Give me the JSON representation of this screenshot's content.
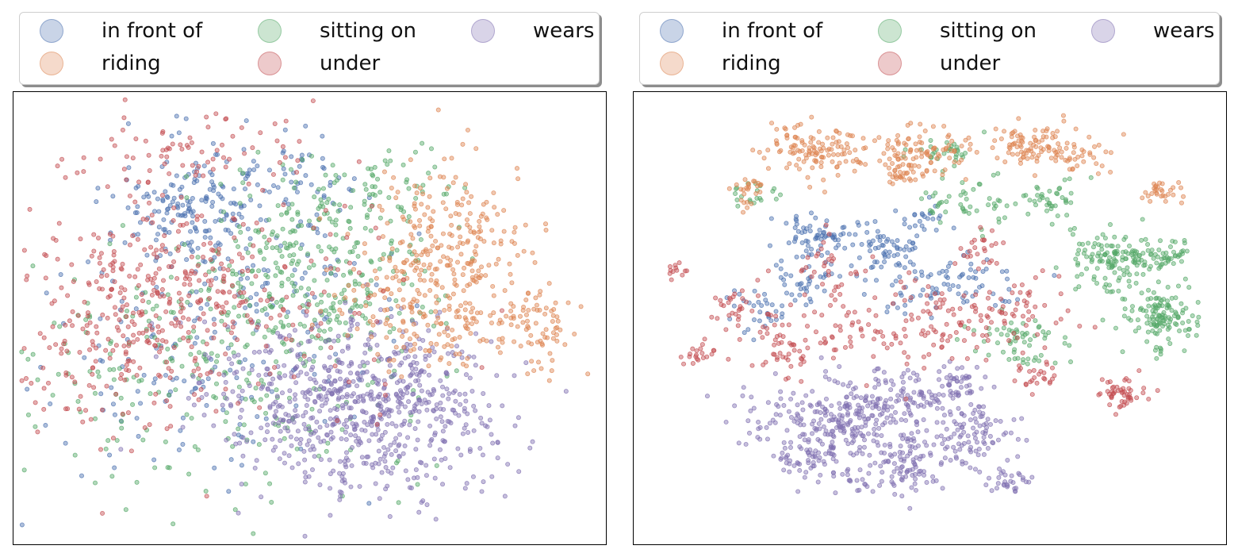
{
  "chart_data": [
    {
      "type": "scatter",
      "title": "",
      "xlabel": "",
      "ylabel": "",
      "axes_ticks": "none",
      "grid": false,
      "legend": {
        "placement": "top",
        "columns": 3,
        "shadow": true
      },
      "xlim": [
        0,
        100
      ],
      "ylim": [
        0,
        100
      ],
      "series": [
        {
          "name": "in front of",
          "color": "#4c72b0",
          "clusters": [
            {
              "cx": 30,
              "cy": 75,
              "sx": 7,
              "sy": 6,
              "n": 140
            },
            {
              "cx": 47,
              "cy": 82,
              "sx": 5,
              "sy": 4,
              "n": 40
            },
            {
              "cx": 38,
              "cy": 60,
              "sx": 14,
              "sy": 16,
              "n": 160
            },
            {
              "cx": 30,
              "cy": 35,
              "sx": 16,
              "sy": 14,
              "n": 90
            }
          ]
        },
        {
          "name": "sitting on",
          "color": "#55a868",
          "clusters": [
            {
              "cx": 50,
              "cy": 60,
              "sx": 11,
              "sy": 12,
              "n": 320
            },
            {
              "cx": 62,
              "cy": 80,
              "sx": 7,
              "sy": 5,
              "n": 60
            },
            {
              "cx": 22,
              "cy": 40,
              "sx": 12,
              "sy": 14,
              "n": 120
            },
            {
              "cx": 45,
              "cy": 30,
              "sx": 16,
              "sy": 12,
              "n": 100
            }
          ]
        },
        {
          "name": "wears",
          "color": "#8172b2",
          "clusters": [
            {
              "cx": 55,
              "cy": 32,
              "sx": 12,
              "sy": 10,
              "n": 500
            },
            {
              "cx": 66,
              "cy": 22,
              "sx": 9,
              "sy": 8,
              "n": 150
            },
            {
              "cx": 70,
              "cy": 35,
              "sx": 7,
              "sy": 6,
              "n": 80
            }
          ]
        },
        {
          "name": "riding",
          "color": "#dd8452",
          "clusters": [
            {
              "cx": 74,
              "cy": 68,
              "sx": 6,
              "sy": 9,
              "n": 200
            },
            {
              "cx": 67,
              "cy": 55,
              "sx": 7,
              "sy": 7,
              "n": 120
            },
            {
              "cx": 89,
              "cy": 47,
              "sx": 3,
              "sy": 5,
              "n": 70
            },
            {
              "cx": 78,
              "cy": 48,
              "sx": 5,
              "sy": 5,
              "n": 60
            }
          ]
        },
        {
          "name": "under",
          "color": "#c44e52",
          "clusters": [
            {
              "cx": 20,
              "cy": 55,
              "sx": 9,
              "sy": 10,
              "n": 240
            },
            {
              "cx": 30,
              "cy": 88,
              "sx": 10,
              "sy": 5,
              "n": 70
            },
            {
              "cx": 42,
              "cy": 58,
              "sx": 14,
              "sy": 16,
              "n": 140
            },
            {
              "cx": 18,
              "cy": 35,
              "sx": 10,
              "sy": 10,
              "n": 80
            }
          ]
        }
      ]
    },
    {
      "type": "scatter",
      "title": "",
      "xlabel": "",
      "ylabel": "",
      "axes_ticks": "none",
      "grid": false,
      "legend": {
        "placement": "top",
        "columns": 3,
        "shadow": true
      },
      "xlim": [
        0,
        100
      ],
      "ylim": [
        0,
        100
      ],
      "series": [
        {
          "name": "in front of",
          "color": "#4c72b0",
          "clusters": [
            {
              "cx": 30,
              "cy": 69,
              "sx": 3,
              "sy": 3,
              "n": 60
            },
            {
              "cx": 41,
              "cy": 67,
              "sx": 4,
              "sy": 3,
              "n": 60
            },
            {
              "cx": 28,
              "cy": 59,
              "sx": 3,
              "sy": 3,
              "n": 40
            },
            {
              "cx": 21,
              "cy": 52,
              "sx": 3,
              "sy": 3,
              "n": 30
            },
            {
              "cx": 47,
              "cy": 58,
              "sx": 5,
              "sy": 5,
              "n": 50
            },
            {
              "cx": 58,
              "cy": 58,
              "sx": 4,
              "sy": 3,
              "n": 40
            },
            {
              "cx": 49,
              "cy": 73,
              "sx": 2,
              "sy": 2,
              "n": 20
            }
          ]
        },
        {
          "name": "sitting on",
          "color": "#55a868",
          "clusters": [
            {
              "cx": 83,
              "cy": 63,
              "sx": 4,
              "sy": 3,
              "n": 150
            },
            {
              "cx": 90,
              "cy": 50,
              "sx": 3,
              "sy": 3.5,
              "n": 130
            },
            {
              "cx": 92,
              "cy": 64,
              "sx": 1.5,
              "sy": 1.5,
              "n": 25
            },
            {
              "cx": 66,
              "cy": 45,
              "sx": 5,
              "sy": 3,
              "n": 60
            },
            {
              "cx": 55,
              "cy": 77,
              "sx": 4,
              "sy": 3,
              "n": 50
            },
            {
              "cx": 71,
              "cy": 76,
              "sx": 3,
              "sy": 3,
              "n": 40
            },
            {
              "cx": 20,
              "cy": 78,
              "sx": 2,
              "sy": 1.5,
              "n": 20
            },
            {
              "cx": 51,
              "cy": 88,
              "sx": 3,
              "sy": 2,
              "n": 30
            }
          ]
        },
        {
          "name": "wears",
          "color": "#8172b2",
          "clusters": [
            {
              "cx": 33,
              "cy": 26,
              "sx": 7,
              "sy": 5,
              "n": 260
            },
            {
              "cx": 45,
              "cy": 30,
              "sx": 5,
              "sy": 4,
              "n": 100
            },
            {
              "cx": 57,
              "cy": 24,
              "sx": 4,
              "sy": 4,
              "n": 100
            },
            {
              "cx": 46,
              "cy": 15,
              "sx": 3,
              "sy": 4,
              "n": 90
            },
            {
              "cx": 54,
              "cy": 35,
              "sx": 3,
              "sy": 2,
              "n": 50
            },
            {
              "cx": 64,
              "cy": 13,
              "sx": 2,
              "sy": 1.5,
              "n": 30
            },
            {
              "cx": 30,
              "cy": 18,
              "sx": 3,
              "sy": 2,
              "n": 30
            },
            {
              "cx": 36,
              "cy": 13,
              "sx": 2,
              "sy": 1.5,
              "n": 15
            }
          ]
        },
        {
          "name": "riding",
          "color": "#dd8452",
          "clusters": [
            {
              "cx": 30,
              "cy": 88,
              "sx": 4.5,
              "sy": 3,
              "n": 120
            },
            {
              "cx": 49,
              "cy": 88,
              "sx": 4.5,
              "sy": 3,
              "n": 100
            },
            {
              "cx": 68,
              "cy": 89,
              "sx": 4.5,
              "sy": 2.5,
              "n": 100
            },
            {
              "cx": 76,
              "cy": 86,
              "sx": 2.5,
              "sy": 1.5,
              "n": 20
            },
            {
              "cx": 18,
              "cy": 79,
              "sx": 2,
              "sy": 2,
              "n": 25
            },
            {
              "cx": 90,
              "cy": 79,
              "sx": 1.5,
              "sy": 1.5,
              "n": 30
            },
            {
              "cx": 45,
              "cy": 83,
              "sx": 2,
              "sy": 1.5,
              "n": 20
            }
          ]
        },
        {
          "name": "under",
          "color": "#c44e52",
          "clusters": [
            {
              "cx": 6,
              "cy": 61,
              "sx": 0.8,
              "sy": 1,
              "n": 12
            },
            {
              "cx": 10,
              "cy": 42,
              "sx": 1.5,
              "sy": 1.5,
              "n": 20
            },
            {
              "cx": 16,
              "cy": 53,
              "sx": 2,
              "sy": 2,
              "n": 25
            },
            {
              "cx": 25,
              "cy": 45,
              "sx": 5,
              "sy": 4,
              "n": 70
            },
            {
              "cx": 47,
              "cy": 50,
              "sx": 8,
              "sy": 6,
              "n": 120
            },
            {
              "cx": 33,
              "cy": 62,
              "sx": 3,
              "sy": 3,
              "n": 30
            },
            {
              "cx": 65,
              "cy": 52,
              "sx": 5,
              "sy": 4,
              "n": 50
            },
            {
              "cx": 69,
              "cy": 37,
              "sx": 2,
              "sy": 2,
              "n": 25
            },
            {
              "cx": 83,
              "cy": 33,
              "sx": 2,
              "sy": 2,
              "n": 50
            },
            {
              "cx": 58,
              "cy": 65,
              "sx": 2,
              "sy": 2,
              "n": 25
            }
          ]
        }
      ]
    }
  ]
}
